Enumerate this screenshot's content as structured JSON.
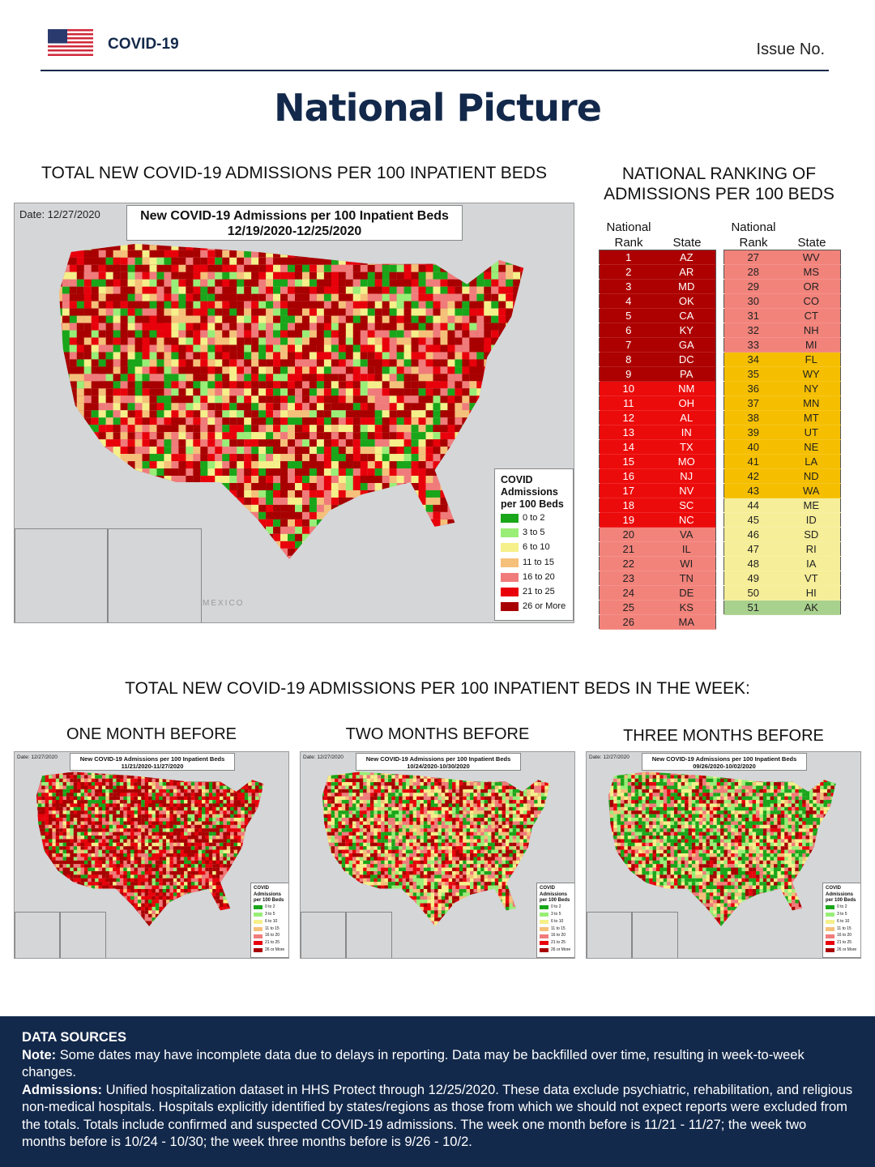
{
  "header": {
    "brand": "COVID-19",
    "issue": "Issue No.",
    "title": "National Picture"
  },
  "colors": {
    "navy": "#13294b",
    "legend": [
      "#1aa61a",
      "#99ee77",
      "#f5f08a",
      "#f5c07a",
      "#f07b7b",
      "#e8000b",
      "#a80000"
    ]
  },
  "main_map": {
    "section_title": "TOTAL NEW COVID-19 ADMISSIONS PER 100 INPATIENT BEDS",
    "date": "Date: 12/27/2020",
    "title": "New COVID-19 Admissions per 100 Inpatient Beds",
    "range": "12/19/2020-12/25/2020",
    "mexico_label": "MEXICO"
  },
  "legend": {
    "title1": "COVID",
    "title2": "Admissions",
    "title3": "per 100 Beds",
    "items": [
      "0 to 2",
      "3 to 5",
      "6 to 10",
      "11 to 15",
      "16 to 20",
      "21 to 25",
      "26 or More"
    ]
  },
  "ranking": {
    "title1": "NATIONAL RANKING OF",
    "title2": "ADMISSIONS PER 100 BEDS",
    "col_rank1": "National",
    "col_rank2": "Rank",
    "col_state": "State",
    "rows": [
      [
        "1",
        "AZ"
      ],
      [
        "2",
        "AR"
      ],
      [
        "3",
        "MD"
      ],
      [
        "4",
        "OK"
      ],
      [
        "5",
        "CA"
      ],
      [
        "6",
        "KY"
      ],
      [
        "7",
        "GA"
      ],
      [
        "8",
        "DC"
      ],
      [
        "9",
        "PA"
      ],
      [
        "10",
        "NM"
      ],
      [
        "11",
        "OH"
      ],
      [
        "12",
        "AL"
      ],
      [
        "13",
        "IN"
      ],
      [
        "14",
        "TX"
      ],
      [
        "15",
        "MO"
      ],
      [
        "16",
        "NJ"
      ],
      [
        "17",
        "NV"
      ],
      [
        "18",
        "SC"
      ],
      [
        "19",
        "NC"
      ],
      [
        "20",
        "VA"
      ],
      [
        "21",
        "IL"
      ],
      [
        "22",
        "WI"
      ],
      [
        "23",
        "TN"
      ],
      [
        "24",
        "DE"
      ],
      [
        "25",
        "KS"
      ],
      [
        "26",
        "MA"
      ],
      [
        "27",
        "WV"
      ],
      [
        "28",
        "MS"
      ],
      [
        "29",
        "OR"
      ],
      [
        "30",
        "CO"
      ],
      [
        "31",
        "CT"
      ],
      [
        "32",
        "NH"
      ],
      [
        "33",
        "MI"
      ],
      [
        "34",
        "FL"
      ],
      [
        "35",
        "WY"
      ],
      [
        "36",
        "NY"
      ],
      [
        "37",
        "MN"
      ],
      [
        "38",
        "MT"
      ],
      [
        "39",
        "UT"
      ],
      [
        "40",
        "NE"
      ],
      [
        "41",
        "LA"
      ],
      [
        "42",
        "ND"
      ],
      [
        "43",
        "WA"
      ],
      [
        "44",
        "ME"
      ],
      [
        "45",
        "ID"
      ],
      [
        "46",
        "SD"
      ],
      [
        "47",
        "RI"
      ],
      [
        "48",
        "IA"
      ],
      [
        "49",
        "VT"
      ],
      [
        "50",
        "HI"
      ],
      [
        "51",
        "AK"
      ]
    ]
  },
  "weekly": {
    "section_title": "TOTAL NEW COVID-19 ADMISSIONS PER 100 INPATIENT BEDS IN THE WEEK:",
    "maps": [
      {
        "label": "ONE MONTH BEFORE",
        "date": "Date: 12/27/2020",
        "title": "New COVID-19 Admissions per 100 Inpatient Beds",
        "range": "11/21/2020-11/27/2020"
      },
      {
        "label": "TWO MONTHS BEFORE",
        "date": "Date: 12/27/2020",
        "title": "New COVID-19 Admissions per 100 Inpatient Beds",
        "range": "10/24/2020-10/30/2020"
      },
      {
        "label": "THREE MONTHS BEFORE",
        "date": "Date: 12/27/2020",
        "title": "New COVID-19 Admissions per 100 Inpatient Beds",
        "range": "09/26/2020-10/02/2020"
      }
    ]
  },
  "footer": {
    "heading": "DATA SOURCES",
    "note_label": "Note:",
    "note": " Some dates may have incomplete data due to delays in reporting. Data may be backfilled over time, resulting in week-to-week changes.",
    "adm_label": "Admissions:",
    "adm": " Unified hospitalization dataset in HHS Protect through 12/25/2020. These data exclude psychiatric, rehabilitation, and religious non-medical hospitals. Hospitals explicitly identified by states/regions as those from which we should not expect reports were excluded from the totals. Totals include confirmed and suspected COVID-19 admissions. The week one month before is 11/21 - 11/27; the week two months before is 10/24 - 10/30; the week three months before is 9/26 - 10/2."
  }
}
